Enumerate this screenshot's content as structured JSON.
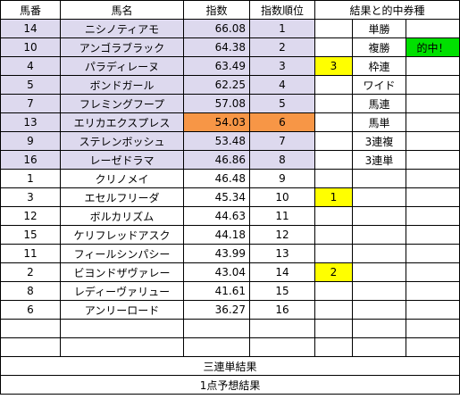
{
  "headers": {
    "number": "馬番",
    "name": "馬名",
    "index": "指数",
    "rank": "指数順位",
    "result": "結果と的中券種"
  },
  "horses": [
    {
      "number": "14",
      "name": "ニシノティアモ",
      "index": "66.08",
      "rank": "1",
      "mark": "",
      "bet": "単勝",
      "hit": ""
    },
    {
      "number": "10",
      "name": "アンゴラブラック",
      "index": "64.38",
      "rank": "2",
      "mark": "",
      "bet": "複勝",
      "hit": "的中！"
    },
    {
      "number": "4",
      "name": "パラディレーヌ",
      "index": "63.49",
      "rank": "3",
      "mark": "3",
      "bet": "枠連",
      "hit": ""
    },
    {
      "number": "5",
      "name": "ボンドガール",
      "index": "62.25",
      "rank": "4",
      "mark": "",
      "bet": "ワイド",
      "hit": ""
    },
    {
      "number": "7",
      "name": "フレミングフープ",
      "index": "57.08",
      "rank": "5",
      "mark": "",
      "bet": "馬連",
      "hit": ""
    },
    {
      "number": "13",
      "name": "エリカエクスプレス",
      "index": "54.03",
      "rank": "6",
      "mark": "",
      "bet": "馬単",
      "hit": ""
    },
    {
      "number": "9",
      "name": "ステレンボッシュ",
      "index": "53.48",
      "rank": "7",
      "mark": "",
      "bet": "3連複",
      "hit": ""
    },
    {
      "number": "16",
      "name": "レーゼドラマ",
      "index": "46.86",
      "rank": "8",
      "mark": "",
      "bet": "3連単",
      "hit": ""
    },
    {
      "number": "1",
      "name": "クリノメイ",
      "index": "46.48",
      "rank": "9",
      "mark": "",
      "bet": "",
      "hit": ""
    },
    {
      "number": "3",
      "name": "エセルフリーダ",
      "index": "45.34",
      "rank": "10",
      "mark": "1",
      "bet": "",
      "hit": ""
    },
    {
      "number": "12",
      "name": "ボルカリズム",
      "index": "44.63",
      "rank": "11",
      "mark": "",
      "bet": "",
      "hit": ""
    },
    {
      "number": "15",
      "name": "ケリフレッドアスク",
      "index": "44.18",
      "rank": "12",
      "mark": "",
      "bet": "",
      "hit": ""
    },
    {
      "number": "11",
      "name": "フィールシンパシー",
      "index": "43.99",
      "rank": "13",
      "mark": "",
      "bet": "",
      "hit": ""
    },
    {
      "number": "2",
      "name": "ビヨンドザヴァレー",
      "index": "43.04",
      "rank": "14",
      "mark": "2",
      "bet": "",
      "hit": ""
    },
    {
      "number": "8",
      "name": "レディーヴァリュー",
      "index": "41.61",
      "rank": "15",
      "mark": "",
      "bet": "",
      "hit": ""
    },
    {
      "number": "6",
      "name": "アンリーロード",
      "index": "36.27",
      "rank": "16",
      "mark": "",
      "bet": "",
      "hit": ""
    },
    {
      "number": "",
      "name": "",
      "index": "",
      "rank": "",
      "mark": "",
      "bet": "",
      "hit": ""
    },
    {
      "number": "",
      "name": "",
      "index": "",
      "rank": "",
      "mark": "",
      "bet": "",
      "hit": ""
    }
  ],
  "footer": {
    "trifecta_result": "三連単結果",
    "one_point_prediction": "1点予想結果"
  },
  "colors": {
    "top_rank_fill": "#ddd9ee",
    "highlight_row": "#f79646",
    "mark_fill": "#ffff00",
    "hit_fill": "#00e000",
    "grid_line": "#000000"
  }
}
